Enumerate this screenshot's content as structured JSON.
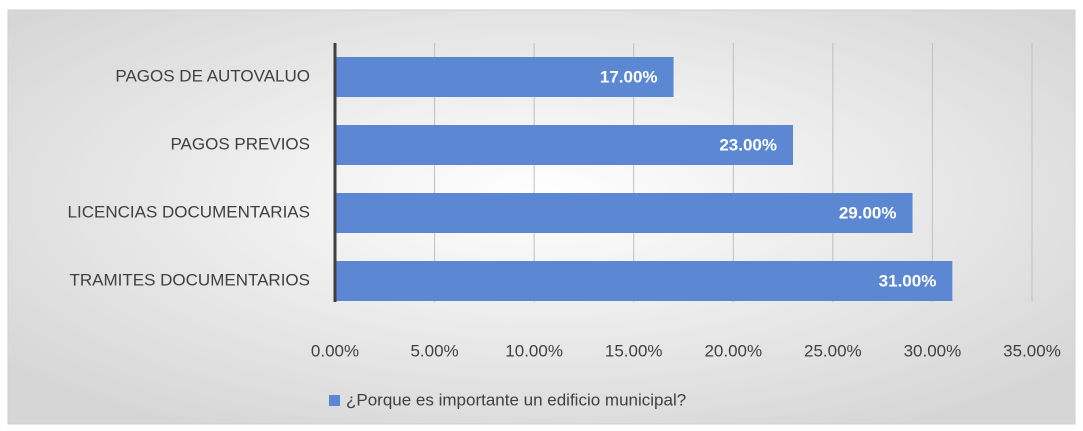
{
  "chart_data": {
    "type": "bar",
    "orientation": "horizontal",
    "categories": [
      "PAGOS DE AUTOVALUO",
      "PAGOS PREVIOS",
      "LICENCIAS DOCUMENTARIAS",
      "TRAMITES DOCUMENTARIOS"
    ],
    "series": [
      {
        "name": "¿Porque es importante un edificio municipal?",
        "color": "#5b87d3",
        "values": [
          17,
          23,
          29,
          31
        ],
        "value_labels": [
          "17.00%",
          "23.00%",
          "29.00%",
          "31.00%"
        ]
      }
    ],
    "xlim": [
      0,
      35
    ],
    "xticks": [
      {
        "value": 0,
        "label": "0.00%"
      },
      {
        "value": 5,
        "label": "5.00%"
      },
      {
        "value": 10,
        "label": "10.00%"
      },
      {
        "value": 15,
        "label": "15.00%"
      },
      {
        "value": 20,
        "label": "20.00%"
      },
      {
        "value": 25,
        "label": "25.00%"
      },
      {
        "value": 30,
        "label": "30.00%"
      },
      {
        "value": 35,
        "label": "35.00%"
      }
    ],
    "grid": true,
    "legend": "bottom"
  }
}
